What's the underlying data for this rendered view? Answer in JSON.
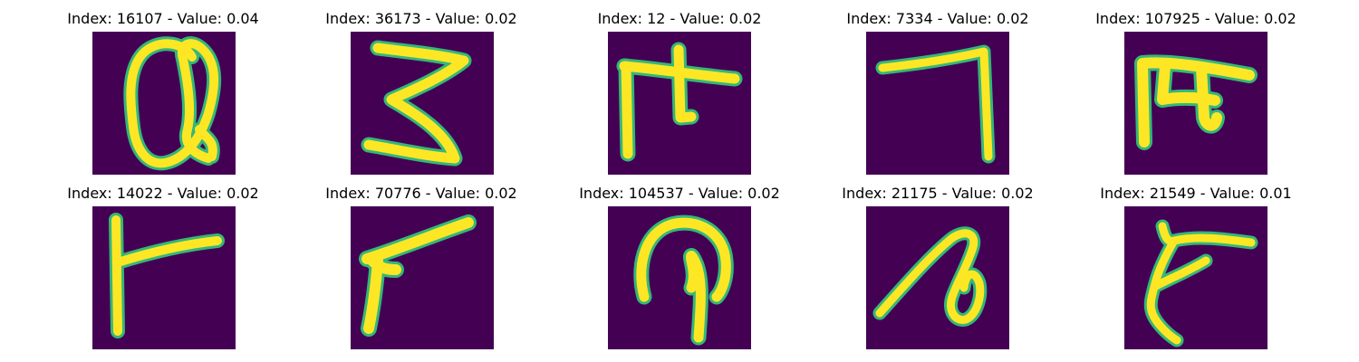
{
  "figure": {
    "background": "#ffffff",
    "colormap": "viridis",
    "image_background_color": "#440154",
    "stroke_color": "#fde725",
    "stroke_edge_color": "#35b779"
  },
  "panels": [
    {
      "title": "Index: 16107 - Value: 0.04",
      "index": 16107,
      "value": 0.04,
      "glyph_icon": "loop-q-glyph"
    },
    {
      "title": "Index: 36173 - Value: 0.02",
      "index": 36173,
      "value": 0.02,
      "glyph_icon": "three-glyph"
    },
    {
      "title": "Index: 12 - Value: 0.02",
      "index": 12,
      "value": 0.02,
      "glyph_icon": "crossed-hook-glyph"
    },
    {
      "title": "Index: 7334 - Value: 0.02",
      "index": 7334,
      "value": 0.02,
      "glyph_icon": "seven-glyph"
    },
    {
      "title": "Index: 107925 - Value: 0.02",
      "index": 107925,
      "value": 0.02,
      "glyph_icon": "pi-like-glyph"
    },
    {
      "title": "Index: 14022 - Value: 0.02",
      "index": 14022,
      "value": 0.02,
      "glyph_icon": "t-flag-glyph"
    },
    {
      "title": "Index: 70776 - Value: 0.02",
      "index": 70776,
      "value": 0.02,
      "glyph_icon": "angle-glyph"
    },
    {
      "title": "Index: 104537 - Value: 0.02",
      "index": 104537,
      "value": 0.02,
      "glyph_icon": "arch-glyph"
    },
    {
      "title": "Index: 21175 - Value: 0.02",
      "index": 21175,
      "value": 0.02,
      "glyph_icon": "loop-slash-glyph"
    },
    {
      "title": "Index: 21549 - Value: 0.01",
      "index": 21549,
      "value": 0.01,
      "glyph_icon": "hook-glyph"
    }
  ]
}
